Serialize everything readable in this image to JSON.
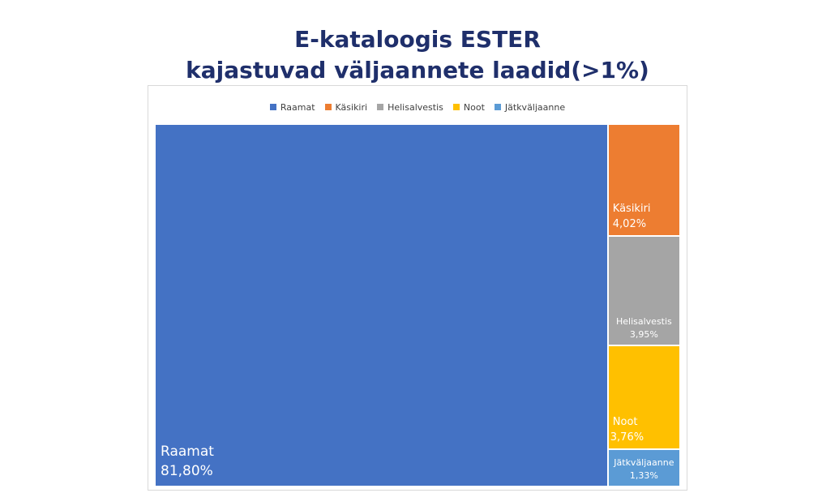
{
  "title": {
    "line1": "E-kataloogis ESTER",
    "line2": "kajastuvad väljaannete laadid(>1%)"
  },
  "chart_data": {
    "type": "treemap",
    "title": "E-kataloogis ESTER kajastuvad väljaannete laadid(>1%)",
    "legend_position": "top",
    "items": [
      {
        "name": "Raamat",
        "value": 81.8,
        "label": "81,80%",
        "color": "#4472c4"
      },
      {
        "name": "Käsikiri",
        "value": 4.02,
        "label": "4,02%",
        "color": "#ed7d31"
      },
      {
        "name": "Helisalvestis",
        "value": 3.95,
        "label": "3,95%",
        "color": "#a5a5a5"
      },
      {
        "name": "Noot",
        "value": 3.76,
        "label": "3,76%",
        "color": "#ffc000"
      },
      {
        "name": "Jätkväljaanne",
        "value": 1.33,
        "label": "1,33%",
        "color": "#5b9bd5"
      }
    ]
  }
}
